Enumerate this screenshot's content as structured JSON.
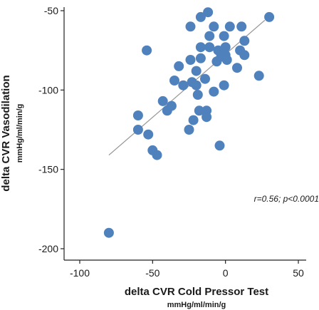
{
  "chart_data": {
    "type": "scatter",
    "xlabel": "delta CVR Cold Pressor Test",
    "xunit": "mmHg/ml/min/g",
    "ylabel": "delta CVR Vasodilation",
    "yunit": "mmHg/ml/min/g",
    "xlim": [
      -100,
      50
    ],
    "ylim": [
      -200,
      -50
    ],
    "xticks": [
      "-100",
      "-50",
      "0",
      "50"
    ],
    "yticks": [
      "-50",
      "-100",
      "-150",
      "-200"
    ],
    "xtick_values": [
      -100,
      -50,
      0,
      50
    ],
    "ytick_values": [
      -50,
      -100,
      -150,
      -200
    ],
    "annotation": "r=0.56; p<0.0001",
    "marker_color": "#4f81bd",
    "line_color": "#999999",
    "regression_line": {
      "x": [
        -80,
        27
      ],
      "y": [
        -141,
        -56
      ]
    },
    "points": [
      {
        "x": -80,
        "y": -190
      },
      {
        "x": -60,
        "y": -116
      },
      {
        "x": -60,
        "y": -125
      },
      {
        "x": -54,
        "y": -75
      },
      {
        "x": -53,
        "y": -128
      },
      {
        "x": -50,
        "y": -138
      },
      {
        "x": -47,
        "y": -141
      },
      {
        "x": -43,
        "y": -107
      },
      {
        "x": -40,
        "y": -113
      },
      {
        "x": -37,
        "y": -110
      },
      {
        "x": -35,
        "y": -94
      },
      {
        "x": -32,
        "y": -85
      },
      {
        "x": -29,
        "y": -97
      },
      {
        "x": -25,
        "y": -125
      },
      {
        "x": -24,
        "y": -60
      },
      {
        "x": -24,
        "y": -81
      },
      {
        "x": -23,
        "y": -95
      },
      {
        "x": -22,
        "y": -119
      },
      {
        "x": -20,
        "y": -88
      },
      {
        "x": -20,
        "y": -97
      },
      {
        "x": -19,
        "y": -103
      },
      {
        "x": -18,
        "y": -113
      },
      {
        "x": -17,
        "y": -73
      },
      {
        "x": -17,
        "y": -80
      },
      {
        "x": -17,
        "y": -54
      },
      {
        "x": -14,
        "y": -93
      },
      {
        "x": -13,
        "y": -113
      },
      {
        "x": -13,
        "y": -117
      },
      {
        "x": -12,
        "y": -51
      },
      {
        "x": -11,
        "y": -66
      },
      {
        "x": -11,
        "y": -73
      },
      {
        "x": -8,
        "y": -60
      },
      {
        "x": -8,
        "y": -101
      },
      {
        "x": -6,
        "y": -82
      },
      {
        "x": -5,
        "y": -75
      },
      {
        "x": -4,
        "y": -135
      },
      {
        "x": -3,
        "y": -79
      },
      {
        "x": -1,
        "y": -97
      },
      {
        "x": -1,
        "y": -66
      },
      {
        "x": 0,
        "y": -73
      },
      {
        "x": 0,
        "y": -78
      },
      {
        "x": 1,
        "y": -81
      },
      {
        "x": 3,
        "y": -60
      },
      {
        "x": 8,
        "y": -86
      },
      {
        "x": 10,
        "y": -75
      },
      {
        "x": 11,
        "y": -60
      },
      {
        "x": 13,
        "y": -69
      },
      {
        "x": 13,
        "y": -78
      },
      {
        "x": 23,
        "y": -91
      },
      {
        "x": 30,
        "y": -54
      }
    ]
  }
}
